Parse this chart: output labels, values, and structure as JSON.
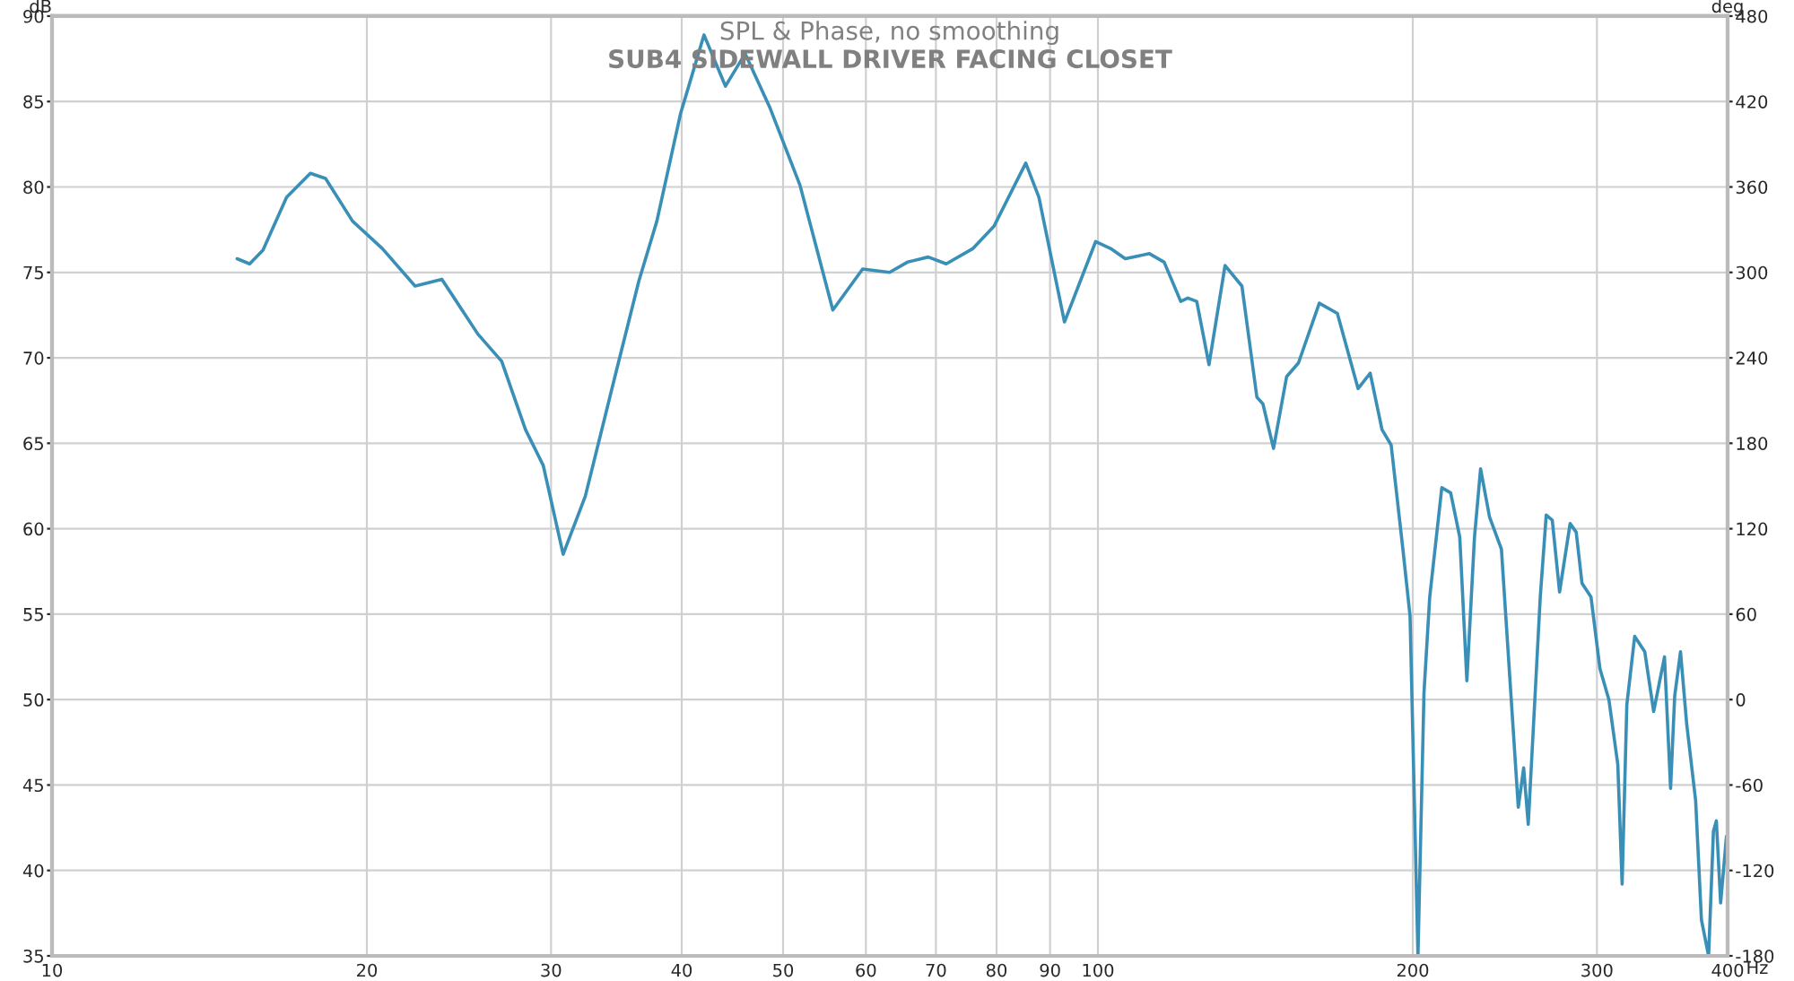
{
  "chart_data": {
    "type": "line",
    "title": "SPL & Phase, no smoothing",
    "subtitle": "SUB4 SIDEWALL DRIVER FACING CLOSET",
    "xlabel": "Hz",
    "ylabel": "dB",
    "y2label": "deg",
    "log": "x",
    "grid": true,
    "xlim": [
      10,
      400
    ],
    "xticks": [
      10,
      20,
      30,
      40,
      50,
      60,
      70,
      80,
      90,
      100,
      200,
      300,
      400
    ],
    "ylim": [
      35,
      90
    ],
    "yticks": [
      35,
      40,
      45,
      50,
      55,
      60,
      65,
      70,
      75,
      80,
      85,
      90
    ],
    "y2lim": [
      -180,
      480
    ],
    "y2ticks": [
      -180,
      -120,
      -60,
      0,
      60,
      120,
      180,
      240,
      300,
      360,
      420,
      480
    ],
    "series": [
      {
        "color": "#3a8fb7",
        "x": [
          15.03,
          15.45,
          15.91,
          16.76,
          17.66,
          18.26,
          19.38,
          20.69,
          22.24,
          23.59,
          25.53,
          26.91,
          28.36,
          29.49,
          30.81,
          32.35,
          34.53,
          36.4,
          37.87,
          39.9,
          42.01,
          44.04,
          45.99,
          48.6,
          51.9,
          55.79,
          59.57,
          63.21,
          65.74,
          68.82,
          71.61,
          75.96,
          79.54,
          85.31,
          87.81,
          92.9,
          99.49,
          102.8,
          106.2,
          112.0,
          115.7,
          120.0,
          121.9,
          124.3,
          127.7,
          132.3,
          137.3,
          141.9,
          143.8,
          147.2,
          151.5,
          155.5,
          162.8,
          169.4,
          177.3,
          182.1,
          186.9,
          190.7,
          195.7,
          198.8,
          202.3,
          205.0,
          207.6,
          213.2,
          217.4,
          221.8,
          225.3,
          229.1,
          232.2,
          236.8,
          243.1,
          252.3,
          255.3,
          257.9,
          264.8,
          268.3,
          271.9,
          276.3,
          282.8,
          286.6,
          290.3,
          296.1,
          302.0,
          308.0,
          314.1,
          317.1,
          320.4,
          326.0,
          333.3,
          339.9,
          348.1,
          352.8,
          356.0,
          360.6,
          365.5,
          372.8,
          377.6,
          383.6,
          387.7,
          390.2,
          393.9,
          399.0
        ],
        "values": [
          75.8,
          75.5,
          76.3,
          79.4,
          80.8,
          80.5,
          78.0,
          76.4,
          74.2,
          74.6,
          71.4,
          69.8,
          65.8,
          63.7,
          58.5,
          61.9,
          68.9,
          74.5,
          78.0,
          84.3,
          88.9,
          85.9,
          87.8,
          84.6,
          80.1,
          72.8,
          75.2,
          75.0,
          75.6,
          75.9,
          75.5,
          76.4,
          77.7,
          81.4,
          79.4,
          72.1,
          76.8,
          76.4,
          75.8,
          76.1,
          75.6,
          73.3,
          73.5,
          73.3,
          69.6,
          75.4,
          74.2,
          67.7,
          67.3,
          64.7,
          68.9,
          69.7,
          73.2,
          72.6,
          68.2,
          69.1,
          65.8,
          64.9,
          58.8,
          54.9,
          35.0,
          50.4,
          56.0,
          62.4,
          62.1,
          59.5,
          51.1,
          59.5,
          63.5,
          60.7,
          58.8,
          43.7,
          46.0,
          42.7,
          56.0,
          60.8,
          60.5,
          56.3,
          60.3,
          59.8,
          56.8,
          56.0,
          51.8,
          50.0,
          46.2,
          39.2,
          49.7,
          53.7,
          52.8,
          49.3,
          52.5,
          44.8,
          50.2,
          52.8,
          48.6,
          44.1,
          37.1,
          35.0,
          42.3,
          42.9,
          38.1,
          42.0
        ]
      }
    ]
  }
}
